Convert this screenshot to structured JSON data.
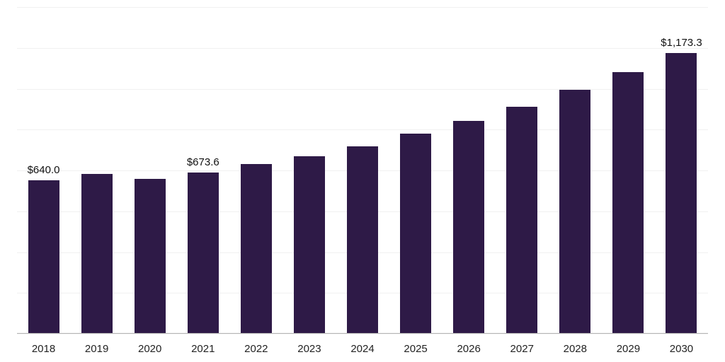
{
  "chart_data": {
    "type": "bar",
    "title": "",
    "xlabel": "",
    "ylabel": "",
    "categories": [
      "2018",
      "2019",
      "2020",
      "2021",
      "2022",
      "2023",
      "2024",
      "2025",
      "2026",
      "2027",
      "2028",
      "2029",
      "2030"
    ],
    "values": [
      640.0,
      668.0,
      646.0,
      673.6,
      708.0,
      742.0,
      783.0,
      836.0,
      889.0,
      948.0,
      1019.0,
      1093.0,
      1173.3
    ],
    "data_labels": [
      "$640.0",
      null,
      null,
      "$673.6",
      null,
      null,
      null,
      null,
      null,
      null,
      null,
      null,
      "$1,173.3"
    ],
    "ylim": [
      0,
      1370
    ],
    "grid": "horizontal",
    "legend": "none",
    "bar_color": "#2e1a47",
    "axis_color": "#b5b5b5",
    "gridline_count": 8
  }
}
